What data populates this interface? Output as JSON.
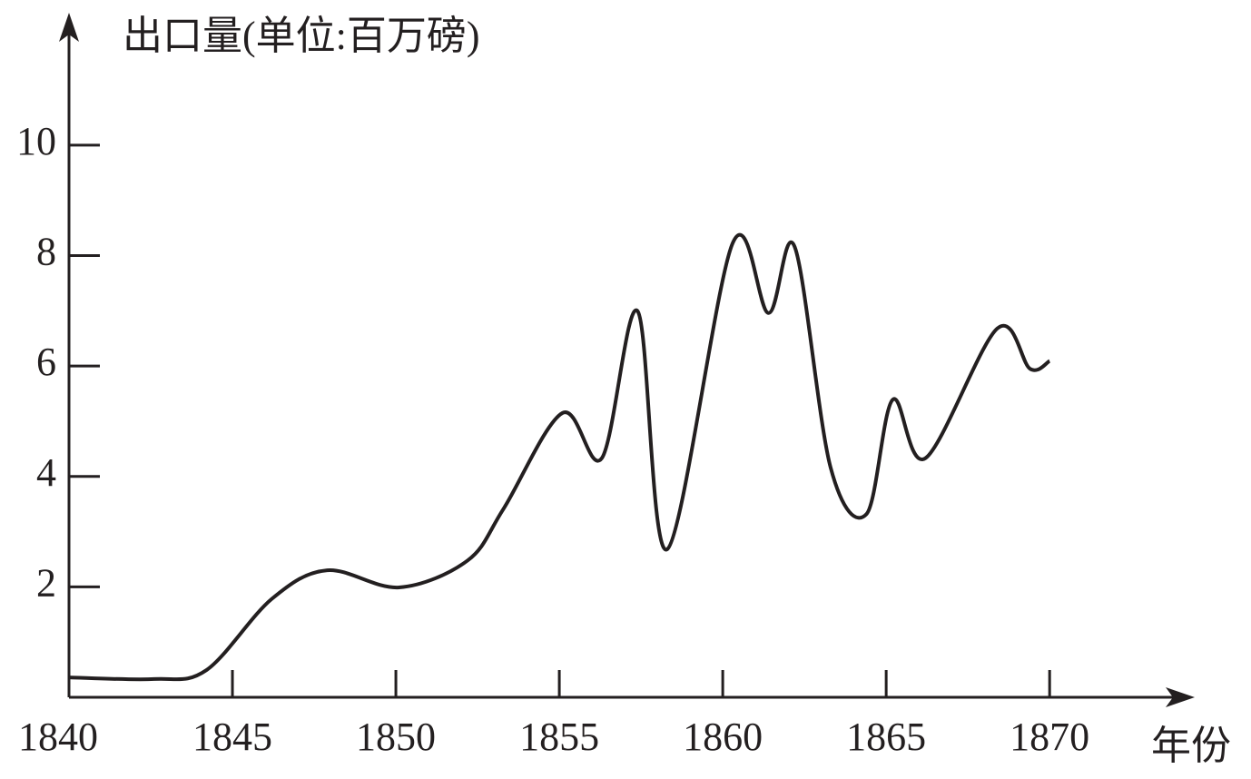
{
  "chart_data": {
    "type": "line",
    "y_label": "出口量(单位:百万磅)",
    "x_label": "年份",
    "x": [
      1840,
      1842.6,
      1844.2,
      1846.2,
      1847.9,
      1850.1,
      1852.2,
      1853.3,
      1855.1,
      1856.3,
      1857.4,
      1858.3,
      1860.3,
      1861.4,
      1862.2,
      1863.3,
      1864.4,
      1865.2,
      1866.2,
      1868.4,
      1869.4,
      1870
    ],
    "series": [
      {
        "color": "#231f20",
        "values": [
          0.36,
          0.33,
          0.49,
          1.78,
          2.3,
          1.99,
          2.48,
          3.42,
          5.15,
          4.33,
          6.99,
          2.68,
          8.22,
          6.96,
          8.16,
          4.16,
          3.32,
          5.39,
          4.33,
          6.68,
          5.95,
          6.09
        ]
      }
    ],
    "xlim": [
      1840,
      1874.3
    ],
    "xticks": [
      1840,
      1845,
      1850,
      1855,
      1860,
      1865,
      1870
    ],
    "ylim": [
      0,
      12.3
    ],
    "yticks": [
      2,
      4,
      6,
      8,
      10
    ]
  }
}
